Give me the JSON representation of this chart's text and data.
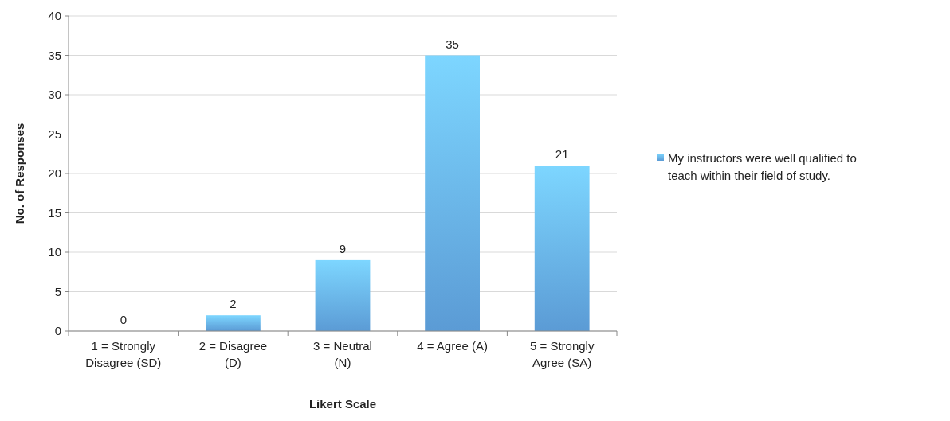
{
  "chart_data": {
    "type": "bar",
    "xlabel": "Likert Scale",
    "ylabel": "No. of Responses",
    "categories": [
      "1 = Strongly Disagree (SD)",
      "2 = Disagree (D)",
      "3 = Neutral (N)",
      "4 = Agree (A)",
      "5 = Strongly Agree (SA)"
    ],
    "series": [
      {
        "name": "My instructors were well qualified to teach within their field of study.",
        "color": "#5b9bd5",
        "values": [
          0,
          2,
          9,
          35,
          21
        ]
      }
    ],
    "ylim": [
      0,
      40
    ],
    "yticks": [
      0,
      5,
      10,
      15,
      20,
      25,
      30,
      35,
      40
    ],
    "grid": "y",
    "legend": "right",
    "data_labels": true
  }
}
